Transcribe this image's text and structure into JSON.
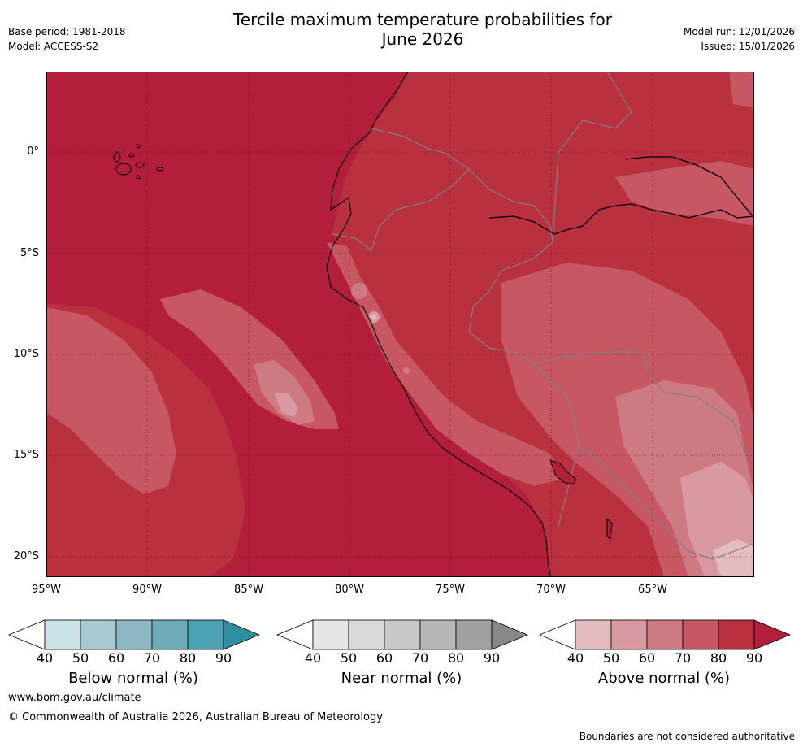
{
  "header": {
    "title_line1": "Tercile maximum temperature probabilities for",
    "title_line2": "June 2026",
    "base_period": "Base period: 1981-2018",
    "model": "Model: ACCESS-S2",
    "model_run": "Model run: 12/01/2026",
    "issued": "Issued: 15/01/2026"
  },
  "map": {
    "lat_labels": [
      "0°",
      "5°S",
      "10°S",
      "15°S",
      "20°S"
    ],
    "lon_labels": [
      "95°W",
      "90°W",
      "85°W",
      "80°W",
      "75°W",
      "70°W",
      "65°W"
    ],
    "colors": {
      "ocean_dominant": "#b31e3a",
      "land_base": "#b9303f",
      "level_70": "#c65763",
      "level_60": "#ce7a82",
      "level_50": "#d89aa0",
      "level_40": "#e2bcbf",
      "coastline": "#000000",
      "border": "#808080",
      "grid": "#5a1020"
    }
  },
  "colorbars": [
    {
      "title": "Below normal (%)",
      "ticks": [
        "40",
        "50",
        "60",
        "70",
        "80",
        "90"
      ],
      "colors": [
        "#c9e3e7",
        "#a7c9cf",
        "#8ab7c1",
        "#6eabb8",
        "#4ba2b1",
        "#2f8fa0"
      ]
    },
    {
      "title": "Near normal (%)",
      "ticks": [
        "40",
        "50",
        "60",
        "70",
        "80",
        "90"
      ],
      "colors": [
        "#e6e6e6",
        "#d8d8d8",
        "#c8c8c8",
        "#b6b6b6",
        "#a0a0a0",
        "#888888"
      ]
    },
    {
      "title": "Above normal (%)",
      "ticks": [
        "40",
        "50",
        "60",
        "70",
        "80",
        "90"
      ],
      "colors": [
        "#e2bcbf",
        "#d89aa0",
        "#ce7a82",
        "#c65763",
        "#b9303f",
        "#b31e3a"
      ]
    }
  ],
  "footer": {
    "url": "www.bom.gov.au/climate",
    "copyright": "© Commonwealth of Australia 2026, Australian Bureau of Meteorology",
    "note": "Boundaries are not considered authoritative"
  }
}
